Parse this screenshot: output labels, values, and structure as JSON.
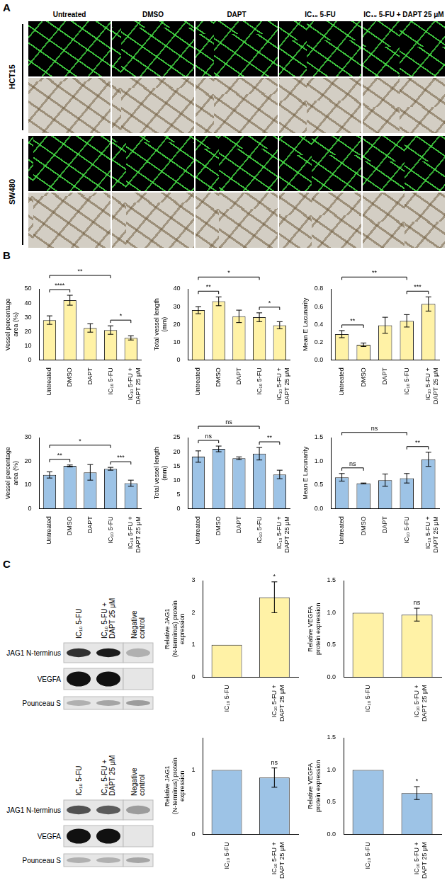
{
  "panel_labels": [
    "A",
    "B",
    "C"
  ],
  "cell_lines": [
    "HCT15",
    "SW480"
  ],
  "treatments": [
    "Untreated",
    "DMSO",
    "DAPT",
    "IC₁₀ 5-FU",
    "IC₁₀ 5-FU + DAPT 25 μM"
  ],
  "blot": {
    "lanes": [
      "IC₁₀ 5-FU",
      "IC₁₀ 5-FU + DAPT 25 μM",
      "Negative control"
    ],
    "rows": [
      "JAG1 N-terminus",
      "VEGFA",
      "Pounceau S"
    ]
  },
  "chart_data": [
    {
      "type": "bar",
      "y_label": "Vessel percentage area (%)",
      "categories": [
        "Untreated",
        "DMSO",
        "DAPT",
        "IC₁₀ 5-FU",
        "IC₁₀ 5-FU + DAPT 25 μM"
      ],
      "values": [
        28,
        42,
        22.5,
        21,
        15.5
      ],
      "errors": [
        3,
        3.5,
        3,
        3,
        1.5
      ],
      "color": "#fff2a6",
      "ylim": [
        0,
        50
      ],
      "yticks": [
        0,
        10,
        20,
        30,
        40,
        50
      ],
      "grid": false,
      "significance": [
        {
          "from": 0,
          "to": 1,
          "label": "****"
        },
        {
          "from": 0,
          "to": 3,
          "label": "**"
        },
        {
          "from": 3,
          "to": 4,
          "label": "*"
        }
      ]
    },
    {
      "type": "bar",
      "y_label": "Total vessel length (mm)",
      "categories": [
        "Untreated",
        "DMSO",
        "DAPT",
        "IC₁₀ 5-FU",
        "IC₁₀ 5-FU + DAPT 25 μM"
      ],
      "values": [
        28,
        33,
        24.5,
        24,
        19.5
      ],
      "errors": [
        2,
        2.5,
        3.5,
        2.5,
        2
      ],
      "color": "#fff2a6",
      "ylim": [
        0,
        40
      ],
      "yticks": [
        0,
        10,
        20,
        30,
        40
      ],
      "grid": false,
      "significance": [
        {
          "from": 0,
          "to": 1,
          "label": "**"
        },
        {
          "from": 0,
          "to": 3,
          "label": "*"
        },
        {
          "from": 3,
          "to": 4,
          "label": "*"
        }
      ]
    },
    {
      "type": "bar",
      "y_label": "Mean E Lacunarity",
      "categories": [
        "Untreated",
        "DMSO",
        "DAPT",
        "IC₁₀ 5-FU",
        "IC₁₀ 5-FU + DAPT 25 μM"
      ],
      "values": [
        0.29,
        0.17,
        0.39,
        0.44,
        0.63
      ],
      "errors": [
        0.04,
        0.02,
        0.09,
        0.07,
        0.08
      ],
      "color": "#fff2a6",
      "ylim": [
        0,
        0.8
      ],
      "yticks": [
        {
          "value": 0,
          "label": "0.0"
        },
        0.2,
        0.4,
        0.6,
        0.8
      ],
      "grid": false,
      "significance": [
        {
          "from": 0,
          "to": 1,
          "label": "**"
        },
        {
          "from": 0,
          "to": 3,
          "label": "**"
        },
        {
          "from": 3,
          "to": 4,
          "label": "***"
        }
      ]
    },
    {
      "type": "bar",
      "y_label": "Vessel percentage area (%)",
      "categories": [
        "Untreated",
        "DMSO",
        "DAPT",
        "IC₁₀ 5-FU",
        "IC₁₀ 5-FU + DAPT 25 μM"
      ],
      "values": [
        14.2,
        18,
        15.3,
        16.8,
        10.7
      ],
      "errors": [
        1.3,
        0.4,
        3.3,
        0.6,
        1.3
      ],
      "color": "#9dc3e6",
      "ylim": [
        0,
        30
      ],
      "yticks": [
        0,
        10,
        20,
        30
      ],
      "grid": false,
      "significance": [
        {
          "from": 0,
          "to": 1,
          "label": "**"
        },
        {
          "from": 0,
          "to": 3,
          "label": "*"
        },
        {
          "from": 3,
          "to": 4,
          "label": "***"
        }
      ]
    },
    {
      "type": "bar",
      "y_label": "Total vessel length (mm)",
      "categories": [
        "Untreated",
        "DMSO",
        "DAPT",
        "IC₁₀ 5-FU",
        "IC₁₀ 5-FU + DAPT 25 μM"
      ],
      "values": [
        18.3,
        21,
        17.7,
        19.3,
        12
      ],
      "errors": [
        2,
        1,
        0.5,
        2.2,
        1.5
      ],
      "color": "#9dc3e6",
      "ylim": [
        0,
        25
      ],
      "yticks": [
        0,
        5,
        10,
        15,
        20,
        25
      ],
      "grid": false,
      "significance": [
        {
          "from": 0,
          "to": 1,
          "label": "ns"
        },
        {
          "from": 0,
          "to": 3,
          "label": "ns"
        },
        {
          "from": 3,
          "to": 4,
          "label": "**"
        }
      ]
    },
    {
      "type": "bar",
      "y_label": "Mean E Lacunarity",
      "categories": [
        "Untreated",
        "DMSO",
        "DAPT",
        "IC₁₀ 5-FU",
        "IC₁₀ 5-FU + DAPT 25 μM"
      ],
      "values": [
        0.66,
        0.53,
        0.6,
        0.64,
        1.04
      ],
      "errors": [
        0.08,
        0.01,
        0.13,
        0.1,
        0.15
      ],
      "color": "#9dc3e6",
      "ylim": [
        0,
        1.5
      ],
      "yticks": [
        {
          "value": 0,
          "label": "0.0"
        },
        0.5,
        {
          "value": 1,
          "label": "1.0"
        },
        1.5
      ],
      "grid": false,
      "significance": [
        {
          "from": 0,
          "to": 1,
          "label": "ns"
        },
        {
          "from": 0,
          "to": 3,
          "label": "ns"
        },
        {
          "from": 3,
          "to": 4,
          "label": "**"
        }
      ]
    },
    {
      "type": "bar",
      "y_label": "Relative JAG1 (N-terminus) protein expression",
      "categories": [
        "IC₁₀ 5-FU",
        "IC₁₀ 5-FU + DAPT 25 μM"
      ],
      "values": [
        1,
        2.48
      ],
      "errors": [
        0,
        0.48
      ],
      "color": "#fff2a6",
      "ylim": [
        0,
        3
      ],
      "yticks": [
        0,
        1,
        2,
        3
      ],
      "grid": false,
      "significance": [
        {
          "at": 1,
          "label": "*"
        }
      ]
    },
    {
      "type": "bar",
      "y_label": "Relative VEGFA protein expression",
      "categories": [
        "IC₁₀ 5-FU",
        "IC₁₀ 5-FU + DAPT 25 μM"
      ],
      "values": [
        1,
        0.97
      ],
      "errors": [
        0,
        0.1
      ],
      "color": "#fff2a6",
      "ylim": [
        0,
        1.5
      ],
      "yticks": [
        {
          "value": 0,
          "label": "0.0"
        },
        0.5,
        {
          "value": 1,
          "label": "1.0"
        },
        1.5
      ],
      "grid": false,
      "significance": [
        {
          "at": 1,
          "label": "ns"
        }
      ]
    },
    {
      "type": "bar",
      "y_label": "Relative JAG1 (N-terminus) protein expression",
      "categories": [
        "IC₁₀ 5-FU",
        "IC₁₀ 5-FU + DAPT 25 μM"
      ],
      "values": [
        1,
        0.88
      ],
      "errors": [
        0,
        0.15
      ],
      "color": "#9dc3e6",
      "ylim": [
        0,
        1.5
      ],
      "yticks": [
        0,
        1
      ],
      "grid": false,
      "significance": [
        {
          "at": 1,
          "label": "ns"
        }
      ]
    },
    {
      "type": "bar",
      "y_label": "Relative VEGFA protein expression",
      "categories": [
        "IC₁₀ 5-FU",
        "IC₁₀ 5-FU + DAPT 25 μM"
      ],
      "values": [
        1,
        0.64
      ],
      "errors": [
        0,
        0.1
      ],
      "color": "#9dc3e6",
      "ylim": [
        0,
        1.5
      ],
      "yticks": [
        {
          "value": 0,
          "label": "0.0"
        },
        0.5,
        {
          "value": 1,
          "label": "1.0"
        },
        1.5
      ],
      "grid": false,
      "significance": [
        {
          "at": 1,
          "label": "*"
        }
      ]
    }
  ]
}
